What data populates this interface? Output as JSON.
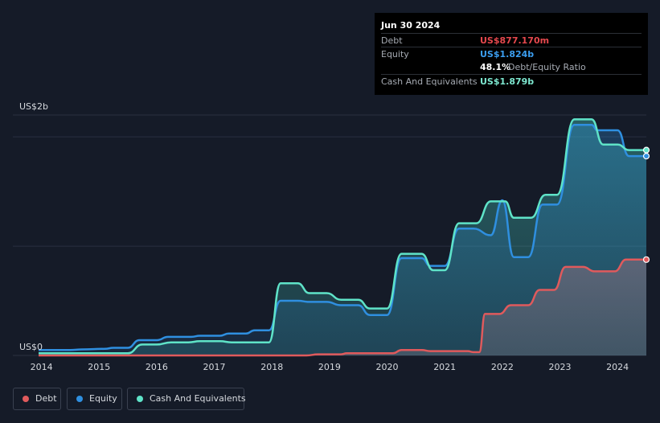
{
  "chart_data": {
    "type": "area",
    "title": "",
    "xlabel": "",
    "ylabel": "",
    "y_unit": "US$",
    "ylim": [
      0,
      2.2
    ],
    "y_ticks_labeled": [
      {
        "value": 0,
        "label": "US$0"
      },
      {
        "value": 2,
        "label": "US$2b"
      }
    ],
    "xlim": [
      2013.95,
      2024.5
    ],
    "x_ticks": [
      2014,
      2015,
      2016,
      2017,
      2018,
      2019,
      2020,
      2021,
      2022,
      2023,
      2024
    ],
    "grid": true,
    "legend_position": "bottom-left",
    "series": [
      {
        "name": "Debt",
        "color": "#e05a5c",
        "points": [
          [
            2013.95,
            0.0
          ],
          [
            2017.9,
            0.0
          ],
          [
            2018.6,
            0.0
          ],
          [
            2018.8,
            0.01
          ],
          [
            2019.2,
            0.01
          ],
          [
            2019.3,
            0.02
          ],
          [
            2020.1,
            0.02
          ],
          [
            2020.25,
            0.05
          ],
          [
            2020.6,
            0.05
          ],
          [
            2020.75,
            0.04
          ],
          [
            2021.4,
            0.04
          ],
          [
            2021.5,
            0.03
          ],
          [
            2021.6,
            0.03
          ],
          [
            2021.7,
            0.38
          ],
          [
            2021.95,
            0.38
          ],
          [
            2022.15,
            0.46
          ],
          [
            2022.45,
            0.46
          ],
          [
            2022.65,
            0.6
          ],
          [
            2022.9,
            0.6
          ],
          [
            2023.1,
            0.81
          ],
          [
            2023.4,
            0.81
          ],
          [
            2023.6,
            0.77
          ],
          [
            2023.95,
            0.77
          ],
          [
            2024.15,
            0.877
          ],
          [
            2024.5,
            0.877
          ]
        ]
      },
      {
        "name": "Equity",
        "color": "#2f8fe0",
        "points": [
          [
            2013.95,
            0.05
          ],
          [
            2014.5,
            0.05
          ],
          [
            2014.7,
            0.055
          ],
          [
            2015.1,
            0.06
          ],
          [
            2015.25,
            0.07
          ],
          [
            2015.5,
            0.07
          ],
          [
            2015.7,
            0.14
          ],
          [
            2016.0,
            0.14
          ],
          [
            2016.2,
            0.17
          ],
          [
            2016.6,
            0.17
          ],
          [
            2016.75,
            0.18
          ],
          [
            2017.1,
            0.18
          ],
          [
            2017.25,
            0.2
          ],
          [
            2017.55,
            0.2
          ],
          [
            2017.7,
            0.23
          ],
          [
            2017.95,
            0.23
          ],
          [
            2018.15,
            0.5
          ],
          [
            2018.45,
            0.5
          ],
          [
            2018.65,
            0.49
          ],
          [
            2018.95,
            0.49
          ],
          [
            2019.2,
            0.46
          ],
          [
            2019.5,
            0.46
          ],
          [
            2019.7,
            0.37
          ],
          [
            2020.0,
            0.37
          ],
          [
            2020.25,
            0.89
          ],
          [
            2020.6,
            0.89
          ],
          [
            2020.75,
            0.82
          ],
          [
            2021.0,
            0.82
          ],
          [
            2021.25,
            1.16
          ],
          [
            2021.5,
            1.16
          ],
          [
            2021.8,
            1.1
          ],
          [
            2022.0,
            1.42
          ],
          [
            2022.2,
            0.9
          ],
          [
            2022.45,
            0.9
          ],
          [
            2022.7,
            1.38
          ],
          [
            2022.95,
            1.38
          ],
          [
            2023.25,
            2.11
          ],
          [
            2023.55,
            2.11
          ],
          [
            2023.65,
            2.06
          ],
          [
            2024.0,
            2.06
          ],
          [
            2024.2,
            1.824
          ],
          [
            2024.5,
            1.824
          ]
        ]
      },
      {
        "name": "Cash And Equivalents",
        "color": "#5fe3c8",
        "points": [
          [
            2013.95,
            0.02
          ],
          [
            2015.5,
            0.02
          ],
          [
            2015.75,
            0.1
          ],
          [
            2016.0,
            0.1
          ],
          [
            2016.25,
            0.12
          ],
          [
            2016.55,
            0.12
          ],
          [
            2016.75,
            0.13
          ],
          [
            2017.1,
            0.13
          ],
          [
            2017.3,
            0.12
          ],
          [
            2017.7,
            0.12
          ],
          [
            2017.95,
            0.12
          ],
          [
            2018.15,
            0.66
          ],
          [
            2018.45,
            0.66
          ],
          [
            2018.65,
            0.57
          ],
          [
            2018.95,
            0.57
          ],
          [
            2019.2,
            0.51
          ],
          [
            2019.5,
            0.51
          ],
          [
            2019.7,
            0.43
          ],
          [
            2020.0,
            0.43
          ],
          [
            2020.25,
            0.93
          ],
          [
            2020.6,
            0.93
          ],
          [
            2020.8,
            0.78
          ],
          [
            2021.0,
            0.78
          ],
          [
            2021.25,
            1.21
          ],
          [
            2021.55,
            1.21
          ],
          [
            2021.8,
            1.41
          ],
          [
            2022.05,
            1.41
          ],
          [
            2022.2,
            1.26
          ],
          [
            2022.5,
            1.26
          ],
          [
            2022.75,
            1.47
          ],
          [
            2022.95,
            1.47
          ],
          [
            2023.25,
            2.16
          ],
          [
            2023.55,
            2.16
          ],
          [
            2023.75,
            1.93
          ],
          [
            2024.0,
            1.93
          ],
          [
            2024.2,
            1.879
          ],
          [
            2024.5,
            1.879
          ]
        ]
      }
    ]
  },
  "tooltip": {
    "date": "Jun 30 2024",
    "rows": [
      {
        "label": "Debt",
        "value": "US$877.170m",
        "color": "#e5484d"
      },
      {
        "label": "Equity",
        "value": "US$1.824b",
        "color": "#3b9ef0"
      },
      {
        "label": "",
        "value": "48.1%",
        "sub": "Debt/Equity Ratio",
        "color": "#ffffff"
      },
      {
        "label": "Cash And Equivalents",
        "value": "US$1.879b",
        "color": "#7ee8d0"
      }
    ]
  },
  "legend": [
    {
      "label": "Debt",
      "color": "#e05a5c"
    },
    {
      "label": "Equity",
      "color": "#2f8fe0"
    },
    {
      "label": "Cash And Equivalents",
      "color": "#5fe3c8"
    }
  ]
}
